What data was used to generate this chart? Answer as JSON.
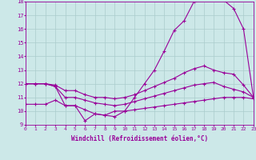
{
  "xlabel": "Windchill (Refroidissement éolien,°C)",
  "bg_color": "#cce8e8",
  "grid_color": "#aacccc",
  "line_color": "#990099",
  "xmin": 0,
  "xmax": 23,
  "ymin": 9,
  "ymax": 18,
  "line1_x": [
    0,
    1,
    2,
    3,
    4,
    5,
    6,
    7,
    8,
    9,
    10,
    11,
    12,
    13,
    14,
    15,
    16,
    17,
    18,
    19,
    20,
    21,
    22,
    23
  ],
  "line1_y": [
    12.0,
    12.0,
    12.0,
    11.8,
    10.4,
    10.4,
    10.1,
    9.8,
    9.7,
    9.6,
    10.0,
    11.0,
    12.0,
    13.0,
    14.4,
    15.9,
    16.6,
    18.0,
    18.2,
    18.2,
    18.1,
    17.5,
    16.0,
    11.0
  ],
  "line2_x": [
    0,
    1,
    2,
    3,
    4,
    5,
    6,
    7,
    8,
    9,
    10,
    11,
    12,
    13,
    14,
    15,
    16,
    17,
    18,
    19,
    20,
    21,
    22,
    23
  ],
  "line2_y": [
    12.0,
    12.0,
    12.0,
    11.9,
    11.5,
    11.5,
    11.2,
    11.0,
    11.0,
    10.9,
    11.0,
    11.2,
    11.5,
    11.8,
    12.1,
    12.4,
    12.8,
    13.1,
    13.3,
    13.0,
    12.8,
    12.7,
    11.9,
    11.0
  ],
  "line3_x": [
    0,
    1,
    2,
    3,
    4,
    5,
    6,
    7,
    8,
    9,
    10,
    11,
    12,
    13,
    14,
    15,
    16,
    17,
    18,
    19,
    20,
    21,
    22,
    23
  ],
  "line3_y": [
    12.0,
    12.0,
    12.0,
    11.8,
    11.0,
    11.0,
    10.8,
    10.6,
    10.5,
    10.4,
    10.5,
    10.7,
    10.9,
    11.1,
    11.3,
    11.5,
    11.7,
    11.9,
    12.0,
    12.1,
    11.8,
    11.6,
    11.4,
    11.0
  ],
  "line4_x": [
    0,
    1,
    2,
    3,
    4,
    5,
    6,
    7,
    8,
    9,
    10,
    11,
    12,
    13,
    14,
    15,
    16,
    17,
    18,
    19,
    20,
    21,
    22,
    23
  ],
  "line4_y": [
    10.5,
    10.5,
    10.5,
    10.8,
    10.4,
    10.4,
    9.3,
    9.8,
    9.7,
    10.0,
    10.0,
    10.1,
    10.2,
    10.3,
    10.4,
    10.5,
    10.6,
    10.7,
    10.8,
    10.9,
    11.0,
    11.0,
    11.0,
    10.9
  ]
}
